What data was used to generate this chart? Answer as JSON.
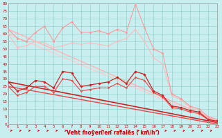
{
  "xlabel": "Vent moyen/en rafales ( km/h )",
  "bg_color": "#c8eef0",
  "grid_color": "#88cccc",
  "xmin": 0,
  "xmax": 23,
  "ymin": 0,
  "ymax": 80,
  "yticks": [
    0,
    5,
    10,
    15,
    20,
    25,
    30,
    35,
    40,
    45,
    50,
    55,
    60,
    65,
    70,
    75,
    80
  ],
  "xticks": [
    0,
    1,
    2,
    3,
    4,
    5,
    6,
    7,
    8,
    9,
    10,
    11,
    12,
    13,
    14,
    15,
    16,
    17,
    18,
    19,
    20,
    21,
    22,
    23
  ],
  "lines": [
    {
      "x": [
        0,
        1,
        2,
        3,
        4,
        5,
        6,
        7,
        8,
        9,
        10,
        11,
        12,
        13,
        14,
        15,
        16,
        17,
        18,
        19,
        20,
        21,
        22,
        23
      ],
      "y": [
        63,
        57,
        55,
        61,
        65,
        55,
        64,
        68,
        61,
        61,
        62,
        60,
        63,
        61,
        80,
        64,
        50,
        47,
        20,
        17,
        12,
        10,
        5,
        3
      ],
      "color": "#ff9999",
      "lw": 0.8,
      "marker": "o",
      "ms": 1.8,
      "zorder": 4
    },
    {
      "x": [
        0,
        1,
        2,
        3,
        4,
        5,
        6,
        7,
        8,
        9,
        10,
        11,
        12,
        13,
        14,
        15,
        16,
        17,
        18,
        19,
        20,
        21,
        22,
        23
      ],
      "y": [
        60,
        51,
        52,
        55,
        54,
        51,
        52,
        54,
        53,
        54,
        53,
        52,
        55,
        57,
        63,
        55,
        44,
        40,
        19,
        16,
        11,
        9,
        4,
        2
      ],
      "color": "#ffbbbb",
      "lw": 0.8,
      "marker": "o",
      "ms": 1.6,
      "zorder": 3
    },
    {
      "x": [
        0,
        1,
        2,
        3,
        4,
        5,
        6,
        7,
        8,
        9,
        10,
        11,
        12,
        13,
        14,
        15,
        16,
        17,
        18,
        19,
        20,
        21,
        22,
        23
      ],
      "y": [
        28,
        22,
        24,
        29,
        28,
        24,
        35,
        34,
        25,
        26,
        27,
        28,
        31,
        27,
        35,
        33,
        22,
        19,
        12,
        11,
        9,
        8,
        3,
        2
      ],
      "color": "#cc2222",
      "lw": 0.9,
      "marker": "D",
      "ms": 1.8,
      "zorder": 5
    },
    {
      "x": [
        0,
        1,
        2,
        3,
        4,
        5,
        6,
        7,
        8,
        9,
        10,
        11,
        12,
        13,
        14,
        15,
        16,
        17,
        18,
        19,
        20,
        21,
        22,
        23
      ],
      "y": [
        25,
        19,
        21,
        25,
        25,
        21,
        30,
        29,
        22,
        23,
        24,
        24,
        27,
        24,
        31,
        29,
        21,
        18,
        11,
        10,
        8,
        7,
        3,
        1
      ],
      "color": "#ee4444",
      "lw": 0.8,
      "marker": "D",
      "ms": 1.4,
      "zorder": 4
    },
    {
      "x": [
        0,
        23
      ],
      "y": [
        63,
        2
      ],
      "color": "#ffbbbb",
      "lw": 1.2,
      "zorder": 1
    },
    {
      "x": [
        0,
        23
      ],
      "y": [
        60,
        1
      ],
      "color": "#ffcccc",
      "lw": 1.0,
      "zorder": 1
    },
    {
      "x": [
        0,
        23
      ],
      "y": [
        28,
        1
      ],
      "color": "#cc2222",
      "lw": 1.2,
      "zorder": 2
    },
    {
      "x": [
        0,
        23
      ],
      "y": [
        25,
        0
      ],
      "color": "#ee4444",
      "lw": 1.0,
      "zorder": 2
    }
  ],
  "arrow_color": "#cc0000",
  "tick_color": "#cc0000",
  "xlabel_color": "#cc0000",
  "tick_fontsize": 4.0,
  "xlabel_fontsize": 5.5
}
